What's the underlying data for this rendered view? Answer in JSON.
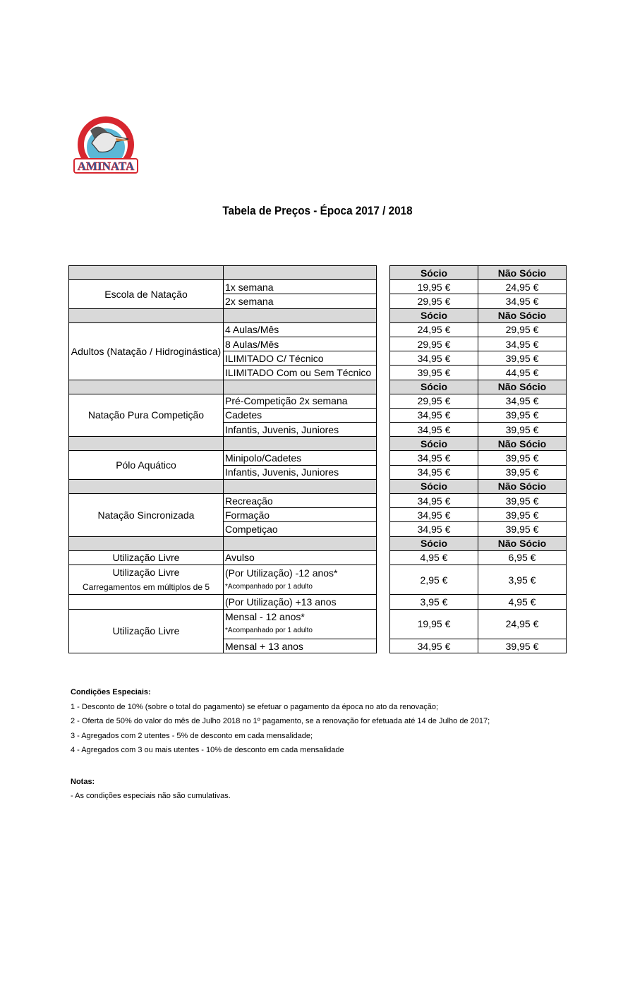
{
  "logo": {
    "text_top": "ÉVORA CLUBE DE NATAÇÃO",
    "text_main": "AMINATA",
    "colors": {
      "red": "#d7262e",
      "blue": "#1f5fa8",
      "water": "#5bb7d6"
    }
  },
  "title": "Tabela de Preços - Época 2017 / 2018",
  "table": {
    "header_socio": "Sócio",
    "header_nao_socio": "Não Sócio",
    "header_bg": "#d9d9d9",
    "sections": [
      {
        "label": "Escola de Natação",
        "items": [
          {
            "name": "1x semana",
            "socio": "19,95 €",
            "nao_socio": "24,95 €"
          },
          {
            "name": "2x semana",
            "socio": "29,95 €",
            "nao_socio": "34,95 €"
          }
        ]
      },
      {
        "label": "Adultos (Natação / Hidroginástica)",
        "items": [
          {
            "name": "4 Aulas/Mês",
            "socio": "24,95 €",
            "nao_socio": "29,95 €"
          },
          {
            "name": "8 Aulas/Mês",
            "socio": "29,95 €",
            "nao_socio": "34,95 €"
          },
          {
            "name": "ILIMITADO C/ Técnico",
            "socio": "34,95 €",
            "nao_socio": "39,95 €"
          },
          {
            "name": "ILIMITADO Com ou Sem Técnico",
            "socio": "39,95 €",
            "nao_socio": "44,95 €"
          }
        ]
      },
      {
        "label": "Natação Pura Competição",
        "items": [
          {
            "name": "Pré-Competição  2x semana",
            "socio": "29,95 €",
            "nao_socio": "34,95 €"
          },
          {
            "name": "Cadetes",
            "socio": "34,95 €",
            "nao_socio": "39,95 €"
          },
          {
            "name": "Infantis, Juvenis, Juniores",
            "socio": "34,95 €",
            "nao_socio": "39,95 €"
          }
        ]
      },
      {
        "label": "Pólo Aquático",
        "items": [
          {
            "name": "Minipolo/Cadetes",
            "socio": "34,95 €",
            "nao_socio": "39,95 €"
          },
          {
            "name": "Infantis, Juvenis, Juniores",
            "socio": "34,95 €",
            "nao_socio": "39,95 €"
          }
        ]
      },
      {
        "label": "Natação Sincronizada",
        "items": [
          {
            "name": "Recreação",
            "socio": "34,95 €",
            "nao_socio": "39,95 €"
          },
          {
            "name": "Formação",
            "socio": "34,95 €",
            "nao_socio": "39,95 €"
          },
          {
            "name": "Competiçao",
            "socio": "34,95 €",
            "nao_socio": "39,95 €"
          }
        ]
      }
    ],
    "livre": {
      "avulso": {
        "label": "Utilização Livre",
        "name": "Avulso",
        "socio": "4,95 €",
        "nao_socio": "6,95 €"
      },
      "carregamentos": {
        "label": "Utilização Livre",
        "sublabel": "Carregamentos em múltiplos de 5",
        "name": "(Por Utilização) -12 anos*",
        "note": "*Acompanhado por 1 adulto",
        "socio": "2,95 €",
        "nao_socio": "3,95 €"
      },
      "mais13": {
        "name": "(Por Utilização) +13 anos",
        "socio": "3,95 €",
        "nao_socio": "4,95 €"
      },
      "mensal": {
        "label": "Utilização Livre",
        "name": "Mensal - 12 anos*",
        "note": "*Acompanhado por 1 adulto",
        "socio": "19,95 €",
        "nao_socio": "24,95 €"
      },
      "mensal13": {
        "name": "Mensal  + 13 anos",
        "socio": "34,95 €",
        "nao_socio": "39,95 €"
      }
    }
  },
  "conditions": {
    "title": "Condições Especiais:",
    "items": [
      "1 - Desconto de 10% (sobre o total do pagamento) se efetuar o pagamento da época no ato da renovação;",
      "2 - Oferta de 50% do valor do mês de Julho 2018 no 1º pagamento, se a renovação for efetuada até 14 de Julho de 2017;",
      "3 - Agregados com 2 utentes - 5% de desconto em cada mensalidade;",
      "4 - Agregados com 3 ou mais utentes - 10% de desconto em cada mensalidade"
    ]
  },
  "notes": {
    "title": "Notas:",
    "items": [
      " - As condições especiais não são cumulativas."
    ]
  }
}
